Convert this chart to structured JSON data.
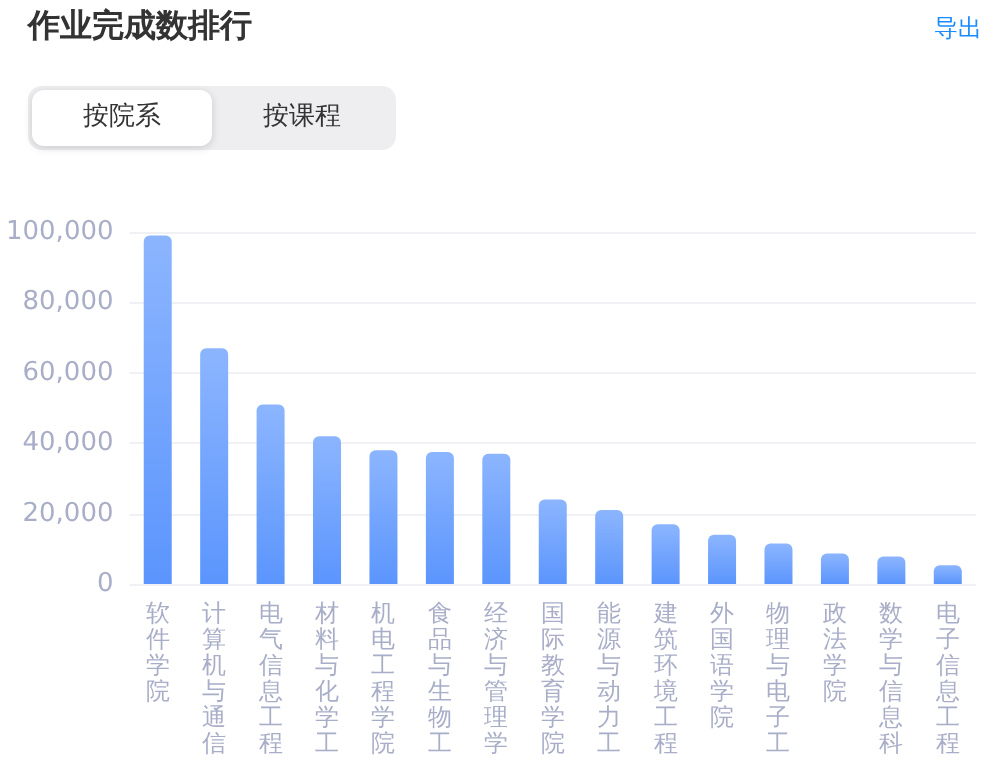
{
  "chart_data": {
    "type": "bar",
    "title": "作业完成数排行",
    "annotations": [
      "导出",
      "按院系",
      "按课程"
    ],
    "categories": [
      "软件学院",
      "计算机与通信",
      "电气信息工程",
      "材料与化学工",
      "机电工程学院",
      "食品与生物工",
      "经济与管理学",
      "国际教育学院",
      "能源与动力工",
      "建筑环境工程",
      "外国语学院",
      "物理与电子工",
      "政法学院",
      "数学与信息科",
      "电子信息工程"
    ],
    "values": [
      99000,
      67000,
      51000,
      42000,
      38000,
      37500,
      37000,
      24000,
      21000,
      17000,
      14000,
      11500,
      8700,
      7800,
      5300
    ],
    "color": "#5b95fd",
    "ylim": [
      0,
      100000
    ],
    "yticks": [
      {
        "value": 0,
        "label": "0"
      },
      {
        "value": 20000,
        "label": "20,000"
      },
      {
        "value": 40000,
        "label": "40,000"
      },
      {
        "value": 60000,
        "label": "60,000"
      },
      {
        "value": 80000,
        "label": "80,000"
      },
      {
        "value": 100000,
        "label": "100,000"
      }
    ],
    "grid": "y"
  }
}
